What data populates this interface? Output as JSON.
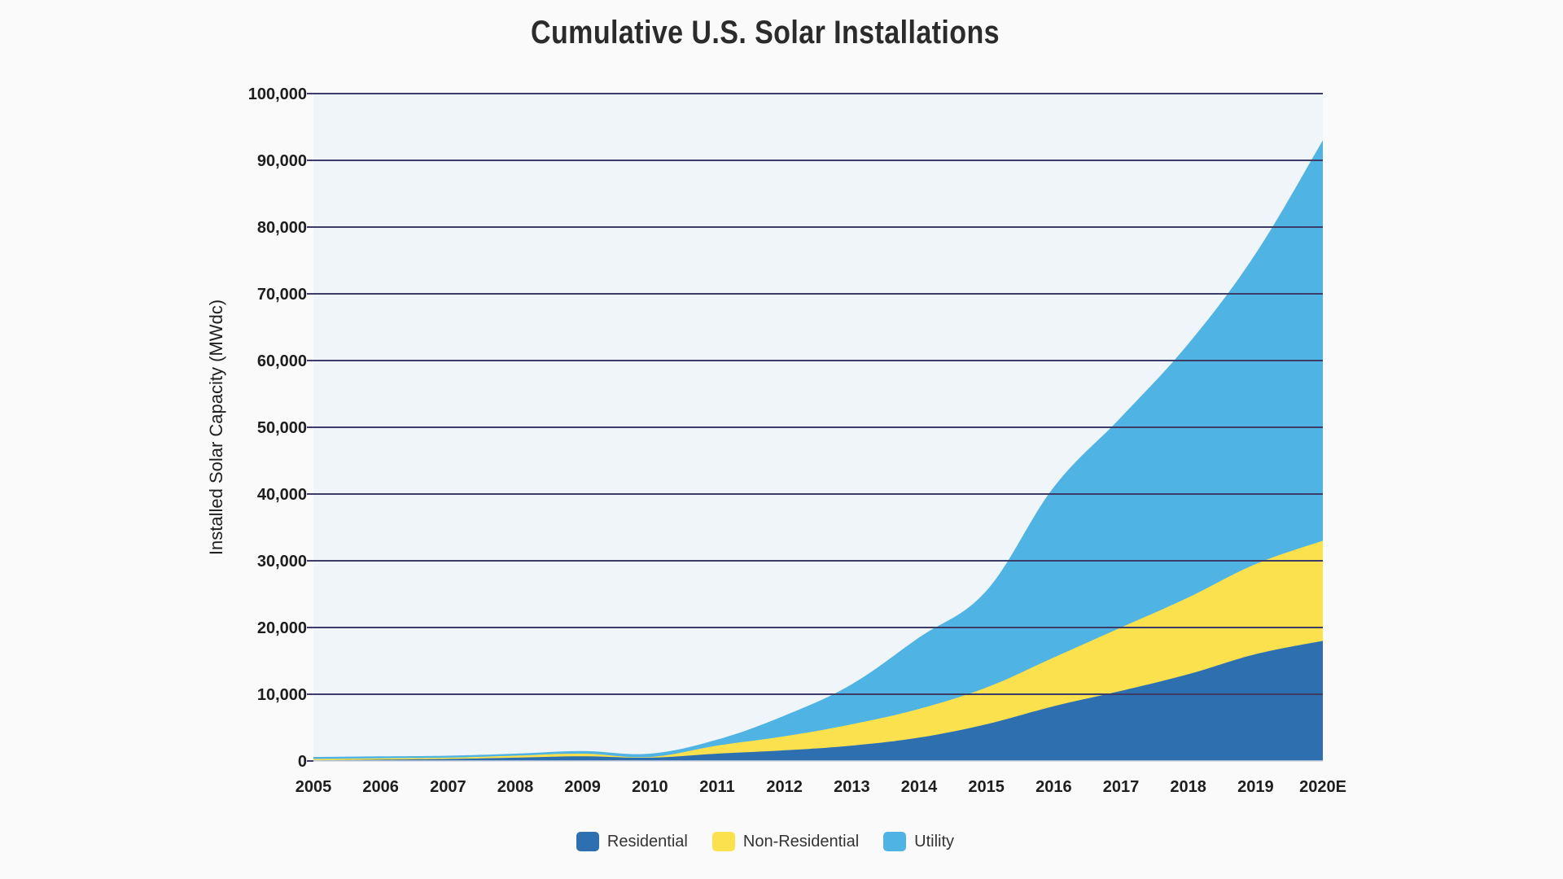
{
  "chart_data": {
    "type": "area",
    "stacked": true,
    "title": "Cumulative U.S. Solar Installations",
    "xlabel": "",
    "ylabel": "Installed Solar Capacity (MWdc)",
    "categories": [
      "2005",
      "2006",
      "2007",
      "2008",
      "2009",
      "2010",
      "2011",
      "2012",
      "2013",
      "2014",
      "2015",
      "2016",
      "2017",
      "2018",
      "2019",
      "2020E"
    ],
    "ylim": [
      0,
      100000
    ],
    "yticks": [
      0,
      10000,
      20000,
      30000,
      40000,
      50000,
      60000,
      70000,
      80000,
      90000,
      100000
    ],
    "ytick_labels": [
      "0",
      "10,000",
      "20,000",
      "30,000",
      "40,000",
      "50,000",
      "60,000",
      "70,000",
      "80,000",
      "90,000",
      "100,000"
    ],
    "grid": true,
    "legend_position": "bottom",
    "series": [
      {
        "name": "Residential",
        "color": "#2e6fb0",
        "values": [
          100,
          200,
          300,
          500,
          700,
          500,
          1100,
          1600,
          2300,
          3500,
          5500,
          8200,
          10500,
          13000,
          16000,
          18000
        ]
      },
      {
        "name": "Non-Residential",
        "color": "#fce14e",
        "values": [
          200,
          200,
          200,
          300,
          400,
          100,
          1200,
          2100,
          3200,
          4300,
          5500,
          7300,
          9500,
          11500,
          13500,
          15000
        ]
      },
      {
        "name": "Utility",
        "color": "#4fb3e4",
        "values": [
          300,
          300,
          300,
          300,
          400,
          500,
          900,
          3100,
          6000,
          10700,
          14500,
          25500,
          31500,
          38000,
          46500,
          60000
        ]
      }
    ],
    "plot_background": "#f0f5fa",
    "gridline_color": "#3d3b68"
  }
}
